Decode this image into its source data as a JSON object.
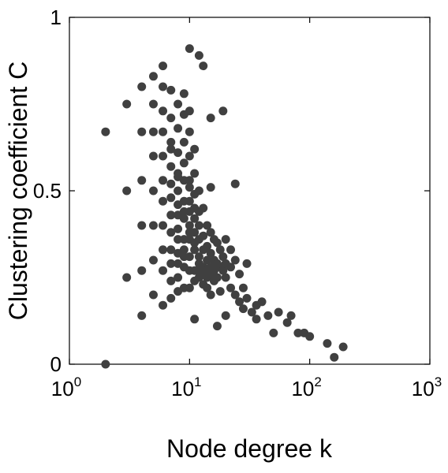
{
  "chart_data": {
    "type": "scatter",
    "xlabel": "Node degree k",
    "ylabel": "Clustering coefficient C",
    "xscale": "log",
    "xlim": [
      1,
      1000
    ],
    "ylim": [
      0,
      1
    ],
    "xticks": [
      {
        "value": 1,
        "label": "10",
        "exponent": "0"
      },
      {
        "value": 10,
        "label": "10",
        "exponent": "1"
      },
      {
        "value": 100,
        "label": "10",
        "exponent": "2"
      },
      {
        "value": 1000,
        "label": "10",
        "exponent": "3"
      }
    ],
    "yticks": [
      0,
      0.5,
      1
    ],
    "color": "#404040",
    "x": [
      2,
      2,
      3,
      3,
      3,
      4,
      4,
      4,
      4,
      4,
      4,
      5,
      5,
      5,
      5,
      5,
      5,
      5,
      5,
      6,
      6,
      6,
      6,
      6,
      6,
      6,
      6,
      6,
      6,
      6,
      7,
      7,
      7,
      7,
      7,
      7,
      7,
      7,
      7,
      7,
      7,
      7,
      7,
      8,
      8,
      8,
      8,
      8,
      8,
      8,
      8,
      8,
      8,
      8,
      8,
      8,
      8,
      9,
      9,
      9,
      9,
      9,
      9,
      9,
      9,
      9,
      9,
      9,
      9,
      9,
      10,
      10,
      10,
      10,
      10,
      10,
      10,
      10,
      10,
      10,
      10,
      10,
      10,
      10,
      11,
      11,
      11,
      11,
      11,
      11,
      11,
      11,
      11,
      11,
      11,
      12,
      12,
      12,
      12,
      12,
      12,
      12,
      12,
      12,
      13,
      13,
      13,
      13,
      13,
      13,
      13,
      14,
      14,
      14,
      14,
      14,
      14,
      15,
      15,
      15,
      15,
      15,
      15,
      15,
      16,
      16,
      16,
      16,
      17,
      17,
      17,
      17,
      18,
      18,
      18,
      19,
      19,
      19,
      20,
      20,
      20,
      20,
      22,
      22,
      22,
      24,
      24,
      24,
      26,
      26,
      28,
      28,
      30,
      30,
      33,
      36,
      36,
      40,
      45,
      50,
      55,
      65,
      70,
      80,
      90,
      100,
      140,
      160,
      190
    ],
    "values": [
      0.67,
      0.0,
      0.75,
      0.5,
      0.25,
      0.8,
      0.67,
      0.53,
      0.4,
      0.27,
      0.14,
      0.83,
      0.75,
      0.67,
      0.6,
      0.5,
      0.4,
      0.3,
      0.2,
      0.86,
      0.8,
      0.73,
      0.67,
      0.6,
      0.53,
      0.47,
      0.4,
      0.33,
      0.27,
      0.17,
      0.79,
      0.71,
      0.62,
      0.57,
      0.52,
      0.48,
      0.43,
      0.38,
      0.33,
      0.29,
      0.24,
      0.19,
      0.64,
      0.75,
      0.68,
      0.61,
      0.54,
      0.5,
      0.46,
      0.43,
      0.39,
      0.36,
      0.32,
      0.29,
      0.25,
      0.21,
      0.55,
      0.72,
      0.64,
      0.58,
      0.53,
      0.47,
      0.44,
      0.42,
      0.36,
      0.33,
      0.31,
      0.28,
      0.22,
      0.78,
      0.91,
      0.73,
      0.67,
      0.6,
      0.53,
      0.51,
      0.47,
      0.44,
      0.4,
      0.38,
      0.36,
      0.31,
      0.27,
      0.22,
      0.62,
      0.55,
      0.49,
      0.45,
      0.42,
      0.38,
      0.35,
      0.33,
      0.27,
      0.24,
      0.13,
      0.89,
      0.5,
      0.44,
      0.4,
      0.36,
      0.31,
      0.29,
      0.27,
      0.25,
      0.86,
      0.45,
      0.37,
      0.33,
      0.28,
      0.26,
      0.23,
      0.4,
      0.34,
      0.3,
      0.27,
      0.25,
      0.22,
      0.71,
      0.51,
      0.38,
      0.32,
      0.28,
      0.26,
      0.2,
      0.36,
      0.3,
      0.27,
      0.24,
      0.35,
      0.29,
      0.25,
      0.11,
      0.33,
      0.28,
      0.21,
      0.73,
      0.31,
      0.27,
      0.36,
      0.29,
      0.25,
      0.14,
      0.33,
      0.28,
      0.22,
      0.52,
      0.3,
      0.2,
      0.26,
      0.18,
      0.22,
      0.16,
      0.29,
      0.19,
      0.15,
      0.17,
      0.13,
      0.18,
      0.14,
      0.09,
      0.15,
      0.12,
      0.14,
      0.09,
      0.09,
      0.08,
      0.06,
      0.02,
      0.05
    ]
  }
}
